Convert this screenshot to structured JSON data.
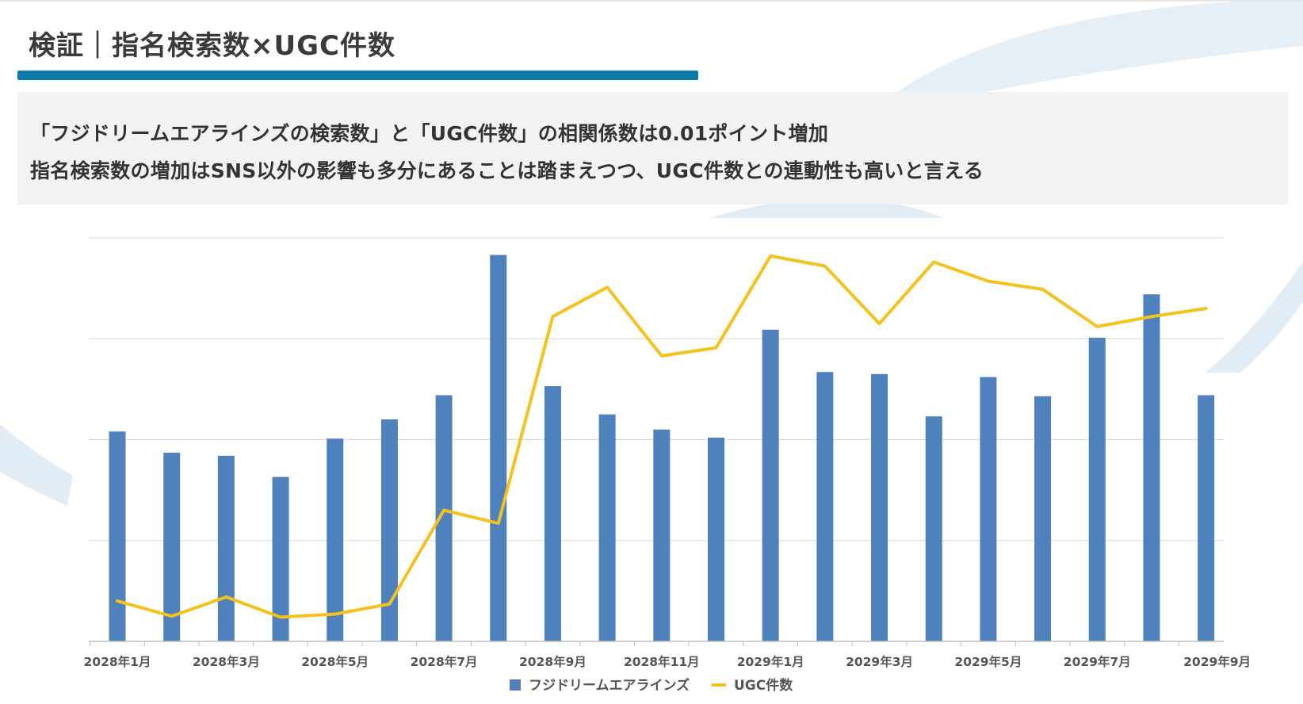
{
  "page": {
    "title": "検証｜指名検索数×UGC件数",
    "summary_lines": [
      "「フジドリームエアラインズの検索数」と「UGC件数」の相関係数は0.01ポイント増加",
      "指名検索数の増加はSNS以外の影響も多分にあることは踏まえつつ、UGC件数との連動性も高いと言える"
    ],
    "accent_color": "#0d7aa8",
    "summary_bg": "#f2f2f2"
  },
  "chart_data": {
    "type": "bar",
    "categories": [
      "2028年1月",
      "2028年2月",
      "2028年3月",
      "2028年4月",
      "2028年5月",
      "2028年6月",
      "2028年7月",
      "2028年8月",
      "2028年9月",
      "2028年10月",
      "2028年11月",
      "2028年12月",
      "2029年1月",
      "2029年2月",
      "2029年3月",
      "2029年4月",
      "2029年5月",
      "2029年6月",
      "2029年7月",
      "2029年8月",
      "2029年9月"
    ],
    "x_tick_labels": [
      "2028年1月",
      "2028年3月",
      "2028年5月",
      "2028年7月",
      "2028年9月",
      "2028年11月",
      "2029年1月",
      "2029年3月",
      "2029年5月",
      "2029年7月",
      "2029年9月"
    ],
    "series": [
      {
        "name": "フジドリームエアラインズ",
        "type": "bar",
        "color": "#4f81bd",
        "values": [
          2.08,
          1.87,
          1.84,
          1.63,
          2.01,
          2.2,
          2.44,
          3.83,
          2.53,
          2.25,
          2.1,
          2.02,
          3.09,
          2.67,
          2.65,
          2.23,
          2.62,
          2.43,
          3.01,
          3.44,
          2.44
        ]
      },
      {
        "name": "UGC件数",
        "type": "line",
        "color": "#f5c11e",
        "values": [
          0.4,
          0.25,
          0.44,
          0.24,
          0.27,
          0.37,
          1.3,
          1.17,
          3.22,
          3.51,
          2.83,
          2.91,
          3.82,
          3.72,
          3.15,
          3.76,
          3.57,
          3.49,
          3.12,
          3.22,
          3.3
        ]
      }
    ],
    "ylim": [
      0,
      4
    ],
    "y_gridlines": [
      1,
      2,
      3,
      4
    ],
    "y_tick_labels_shown": false,
    "grid": true,
    "legend_position": "bottom-center"
  }
}
